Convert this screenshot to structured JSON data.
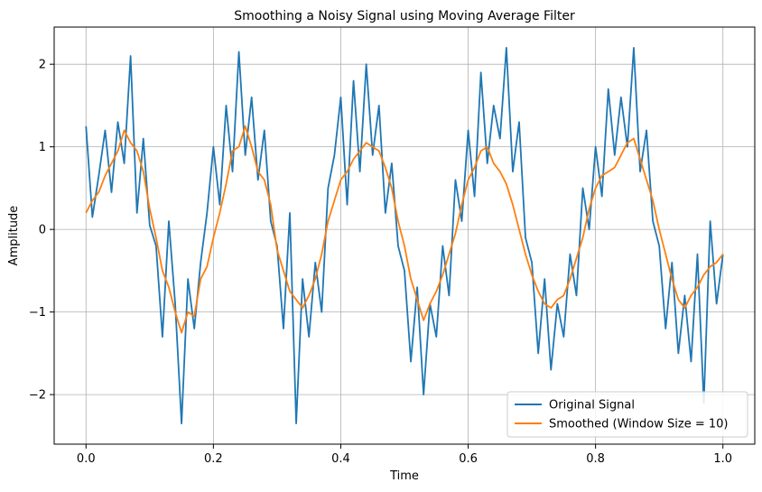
{
  "chart_data": {
    "type": "line",
    "title": "Smoothing a Noisy Signal using Moving Average Filter",
    "xlabel": "Time",
    "ylabel": "Amplitude",
    "xlim": [
      -0.05,
      1.05
    ],
    "ylim": [
      -2.6,
      2.45
    ],
    "xticks": [
      0.0,
      0.2,
      0.4,
      0.6,
      0.8,
      1.0
    ],
    "xtick_labels": [
      "0.0",
      "0.2",
      "0.4",
      "0.6",
      "0.8",
      "1.0"
    ],
    "yticks": [
      -2,
      -1,
      0,
      1,
      2
    ],
    "ytick_labels": [
      "−2",
      "−1",
      "0",
      "1",
      "2"
    ],
    "grid": true,
    "legend_position": "lower right",
    "series": [
      {
        "name": "Original Signal",
        "color": "#1f77b4",
        "x": [
          0.0,
          0.01,
          0.02,
          0.03,
          0.04,
          0.05,
          0.06,
          0.07,
          0.08,
          0.09,
          0.1,
          0.11,
          0.12,
          0.13,
          0.14,
          0.15,
          0.16,
          0.17,
          0.18,
          0.19,
          0.2,
          0.21,
          0.22,
          0.23,
          0.24,
          0.25,
          0.26,
          0.27,
          0.28,
          0.29,
          0.3,
          0.31,
          0.32,
          0.33,
          0.34,
          0.35,
          0.36,
          0.37,
          0.38,
          0.39,
          0.4,
          0.41,
          0.42,
          0.43,
          0.44,
          0.45,
          0.46,
          0.47,
          0.48,
          0.49,
          0.5,
          0.51,
          0.52,
          0.53,
          0.54,
          0.55,
          0.56,
          0.57,
          0.58,
          0.59,
          0.6,
          0.61,
          0.62,
          0.63,
          0.64,
          0.65,
          0.66,
          0.67,
          0.68,
          0.69,
          0.7,
          0.71,
          0.72,
          0.73,
          0.74,
          0.75,
          0.76,
          0.77,
          0.78,
          0.79,
          0.8,
          0.81,
          0.82,
          0.83,
          0.84,
          0.85,
          0.86,
          0.87,
          0.88,
          0.89,
          0.9,
          0.91,
          0.92,
          0.93,
          0.94,
          0.95,
          0.96,
          0.97,
          0.98,
          0.99,
          1.0
        ],
        "y": [
          1.25,
          0.15,
          0.65,
          1.2,
          0.45,
          1.3,
          0.8,
          2.1,
          0.2,
          1.1,
          0.05,
          -0.2,
          -1.3,
          0.1,
          -0.9,
          -2.35,
          -0.6,
          -1.2,
          -0.4,
          0.2,
          1.0,
          0.3,
          1.5,
          0.7,
          2.15,
          0.9,
          1.6,
          0.6,
          1.2,
          0.1,
          -0.2,
          -1.2,
          0.2,
          -2.35,
          -0.6,
          -1.3,
          -0.4,
          -1.0,
          0.5,
          0.9,
          1.6,
          0.3,
          1.8,
          0.7,
          2.0,
          0.9,
          1.5,
          0.2,
          0.8,
          -0.2,
          -0.5,
          -1.6,
          -0.7,
          -2.0,
          -0.9,
          -1.3,
          -0.2,
          -0.8,
          0.6,
          0.1,
          1.2,
          0.4,
          1.9,
          0.8,
          1.5,
          1.1,
          2.2,
          0.7,
          1.3,
          -0.1,
          -0.4,
          -1.5,
          -0.6,
          -1.7,
          -0.9,
          -1.3,
          -0.3,
          -0.8,
          0.5,
          0.0,
          1.0,
          0.4,
          1.7,
          0.9,
          1.6,
          1.0,
          2.2,
          0.7,
          1.2,
          0.1,
          -0.2,
          -1.2,
          -0.4,
          -1.5,
          -0.8,
          -1.6,
          -0.3,
          -2.1,
          0.1,
          -0.9,
          -0.3
        ]
      },
      {
        "name": "Smoothed (Window Size = 10)",
        "color": "#ff7f0e",
        "x": [
          0.0,
          0.01,
          0.02,
          0.03,
          0.04,
          0.05,
          0.06,
          0.07,
          0.08,
          0.09,
          0.1,
          0.11,
          0.12,
          0.13,
          0.14,
          0.15,
          0.16,
          0.17,
          0.18,
          0.19,
          0.2,
          0.21,
          0.22,
          0.23,
          0.24,
          0.25,
          0.26,
          0.27,
          0.28,
          0.29,
          0.3,
          0.31,
          0.32,
          0.33,
          0.34,
          0.35,
          0.36,
          0.37,
          0.38,
          0.39,
          0.4,
          0.41,
          0.42,
          0.43,
          0.44,
          0.45,
          0.46,
          0.47,
          0.48,
          0.49,
          0.5,
          0.51,
          0.52,
          0.53,
          0.54,
          0.55,
          0.56,
          0.57,
          0.58,
          0.59,
          0.6,
          0.61,
          0.62,
          0.63,
          0.64,
          0.65,
          0.66,
          0.67,
          0.68,
          0.69,
          0.7,
          0.71,
          0.72,
          0.73,
          0.74,
          0.75,
          0.76,
          0.77,
          0.78,
          0.79,
          0.8,
          0.81,
          0.82,
          0.83,
          0.84,
          0.85,
          0.86,
          0.87,
          0.88,
          0.89,
          0.9,
          0.91,
          0.92,
          0.93,
          0.94,
          0.95,
          0.96,
          0.97,
          0.98,
          0.99,
          1.0
        ],
        "y": [
          0.2,
          0.35,
          0.45,
          0.65,
          0.8,
          0.95,
          1.2,
          1.05,
          0.95,
          0.7,
          0.25,
          -0.1,
          -0.5,
          -0.7,
          -1.0,
          -1.25,
          -1.0,
          -1.05,
          -0.6,
          -0.45,
          -0.1,
          0.2,
          0.55,
          0.95,
          1.0,
          1.25,
          1.0,
          0.7,
          0.6,
          0.3,
          -0.25,
          -0.5,
          -0.75,
          -0.85,
          -0.95,
          -0.8,
          -0.6,
          -0.3,
          0.1,
          0.35,
          0.6,
          0.7,
          0.85,
          0.95,
          1.05,
          1.0,
          0.95,
          0.75,
          0.5,
          0.1,
          -0.2,
          -0.6,
          -0.85,
          -1.1,
          -0.9,
          -0.75,
          -0.55,
          -0.3,
          -0.05,
          0.3,
          0.6,
          0.75,
          0.95,
          1.0,
          0.8,
          0.7,
          0.55,
          0.3,
          0.0,
          -0.3,
          -0.55,
          -0.75,
          -0.9,
          -0.95,
          -0.85,
          -0.8,
          -0.6,
          -0.35,
          -0.1,
          0.25,
          0.5,
          0.65,
          0.7,
          0.75,
          0.9,
          1.05,
          1.1,
          0.85,
          0.6,
          0.35,
          0.0,
          -0.3,
          -0.6,
          -0.85,
          -0.95,
          -0.8,
          -0.7,
          -0.55,
          -0.45,
          -0.4,
          -0.3
        ]
      }
    ]
  }
}
